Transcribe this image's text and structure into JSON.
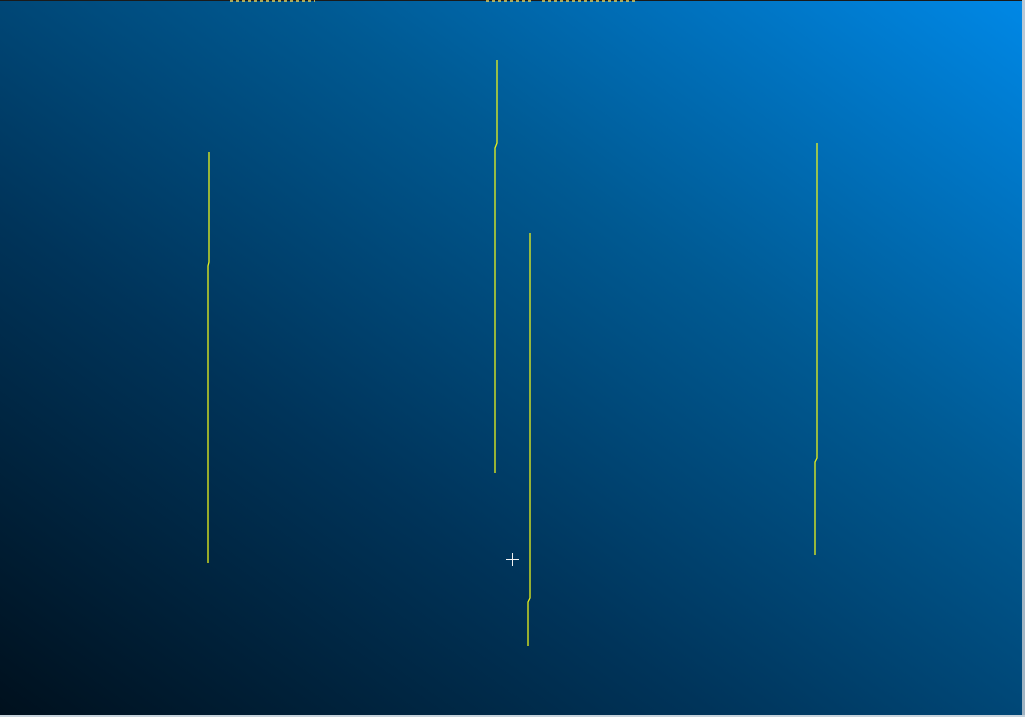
{
  "scene": {
    "background_gradient": [
      "#00101d",
      "#00345a",
      "#005a93",
      "#0088e6"
    ],
    "line_color": "#e8f21c",
    "cursor_color": "#f2f2f2",
    "cursor_icon": "crosshair-cursor-icon"
  }
}
